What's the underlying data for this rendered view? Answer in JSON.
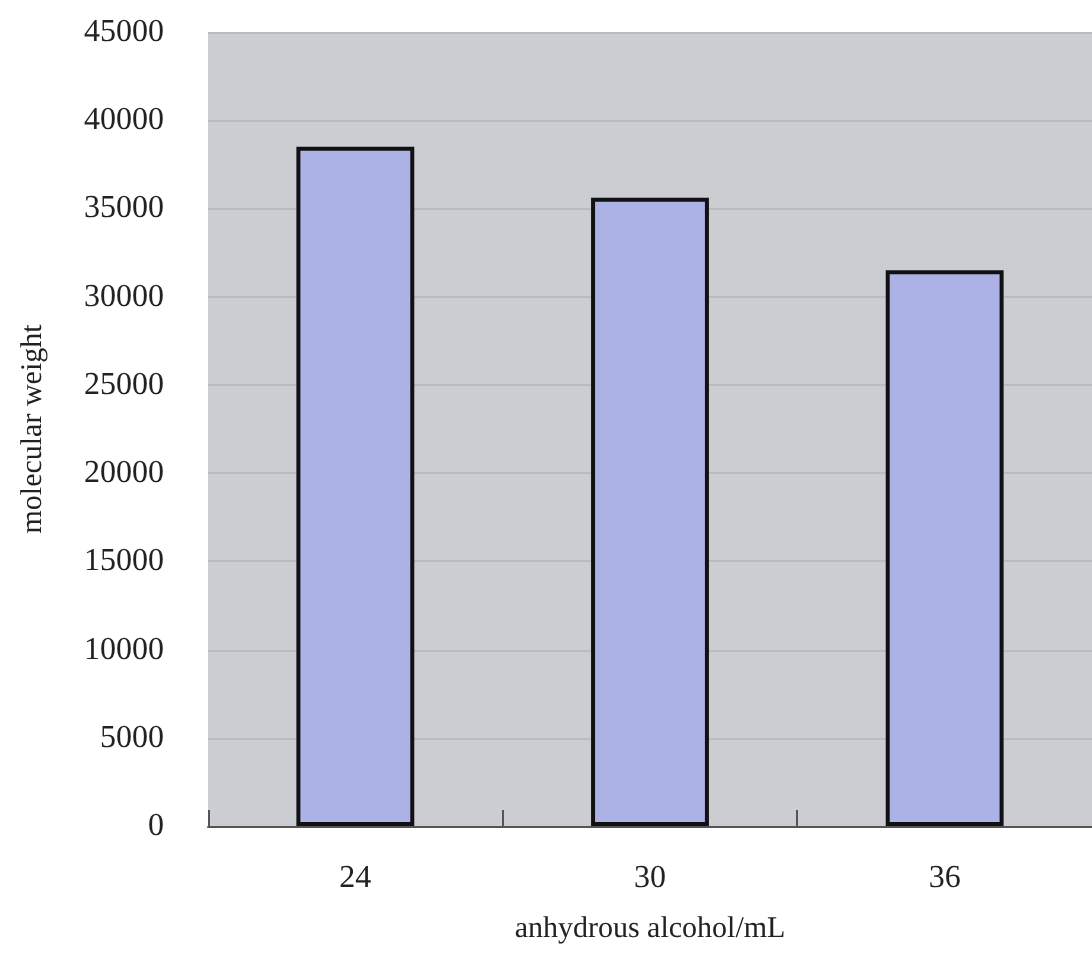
{
  "chart_data": {
    "type": "bar",
    "xlabel": "anhydrous alcohol/mL",
    "ylabel": "molecular weight",
    "categories": [
      "24",
      "30",
      "36"
    ],
    "series": [
      {
        "color": "#adb2e6",
        "values": [
          38500,
          35600,
          31500
        ]
      }
    ],
    "ylim": [
      0,
      45000
    ],
    "yticks": [
      0,
      5000,
      10000,
      15000,
      20000,
      25000,
      30000,
      35000,
      40000,
      45000
    ],
    "grid": "y"
  }
}
